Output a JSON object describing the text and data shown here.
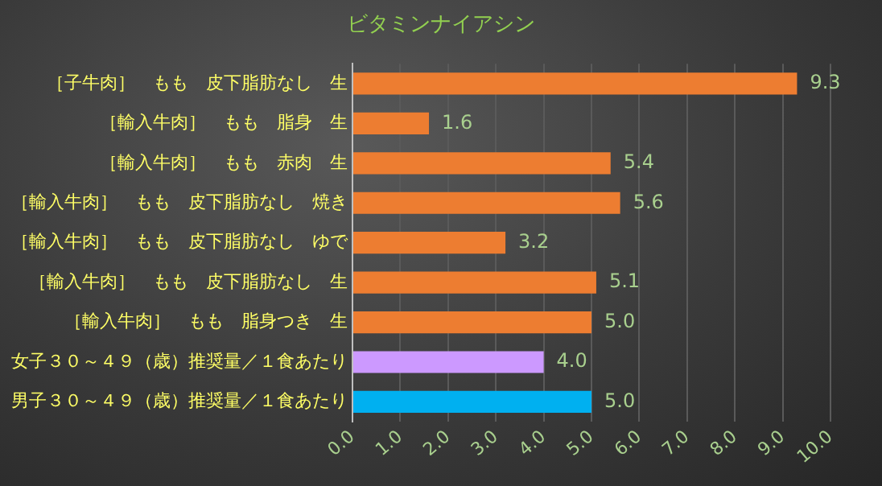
{
  "chart_data": {
    "type": "bar",
    "orientation": "horizontal",
    "title": "ビタミンナイアシン",
    "categories": [
      "［子牛肉］　もも　皮下脂肪なし　生",
      "［輸入牛肉］　もも　脂身　生",
      "［輸入牛肉］　もも　赤肉　生",
      "［輸入牛肉］　もも　皮下脂肪なし　焼き",
      "［輸入牛肉］　もも　皮下脂肪なし　ゆで",
      "［輸入牛肉］　もも　皮下脂肪なし　生",
      "［輸入牛肉］　もも　脂身つき　生",
      "女子３０～４９（歳）推奨量／１食あたり",
      "男子３０～４９（歳）推奨量／１食あたり"
    ],
    "values": [
      9.3,
      1.6,
      5.4,
      5.6,
      3.2,
      5.1,
      5.0,
      4.0,
      5.0
    ],
    "colors": [
      "#ed7d31",
      "#ed7d31",
      "#ed7d31",
      "#ed7d31",
      "#ed7d31",
      "#ed7d31",
      "#ed7d31",
      "#cc99ff",
      "#00b0f0"
    ],
    "value_labels": [
      "9.3",
      "1.6",
      "5.4",
      "5.6",
      "3.2",
      "5.1",
      "5.0",
      "4.0",
      "5.0"
    ],
    "xlim": [
      0,
      10
    ],
    "xticks": [
      {
        "value": 0,
        "label": "0.0"
      },
      {
        "value": 1,
        "label": "1.0"
      },
      {
        "value": 2,
        "label": "2.0"
      },
      {
        "value": 3,
        "label": "3.0"
      },
      {
        "value": 4,
        "label": "4.0"
      },
      {
        "value": 5,
        "label": "5.0"
      },
      {
        "value": 6,
        "label": "6.0"
      },
      {
        "value": 7,
        "label": "7.0"
      },
      {
        "value": 8,
        "label": "8.0"
      },
      {
        "value": 9,
        "label": "9.0"
      },
      {
        "value": 10,
        "label": "10.0"
      }
    ],
    "grid": "x",
    "legend": false
  }
}
